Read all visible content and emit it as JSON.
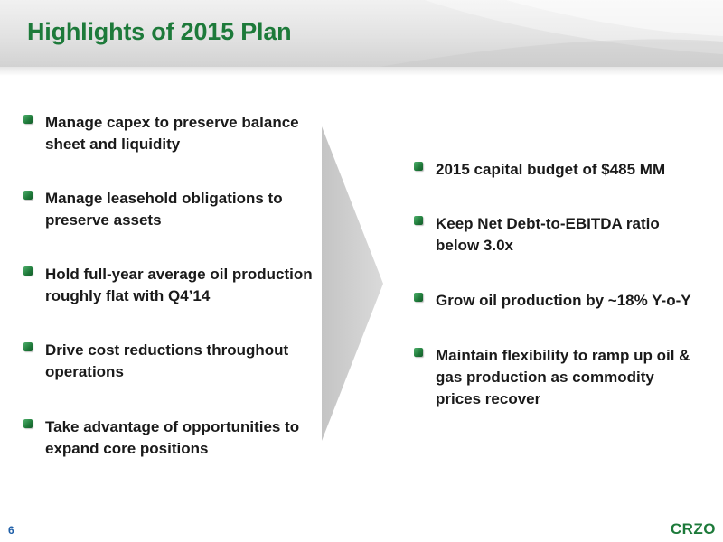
{
  "header": {
    "title": "Highlights of 2015 Plan"
  },
  "left_bullets": [
    {
      "text": "Manage capex to preserve balance sheet and liquidity"
    },
    {
      "text": "Manage leasehold obligations to preserve assets"
    },
    {
      "text": "Hold full-year average oil production roughly flat with Q4’14"
    },
    {
      "text": "Drive cost reductions throughout operations"
    },
    {
      "text": "Take advantage of opportunities to expand core positions"
    }
  ],
  "right_bullets": [
    {
      "text": "2015 capital budget of $485 MM"
    },
    {
      "text": "Keep Net Debt-to-EBITDA ratio below 3.0x"
    },
    {
      "text": "Grow oil production by ~18% Y-o-Y"
    },
    {
      "text": "Maintain flexibility to ramp up oil & gas production as commodity prices recover"
    }
  ],
  "footer": {
    "page_number": "6",
    "logo_text": "CRZO"
  },
  "colors": {
    "title_green": "#1d7a3a",
    "bullet_green": "#2e8b47",
    "chevron_gray": "#cfcfcf",
    "page_number_blue": "#1f5fa8"
  },
  "icons": {
    "bullet": "green-square-bullet-icon",
    "divider": "chevron-arrow"
  }
}
